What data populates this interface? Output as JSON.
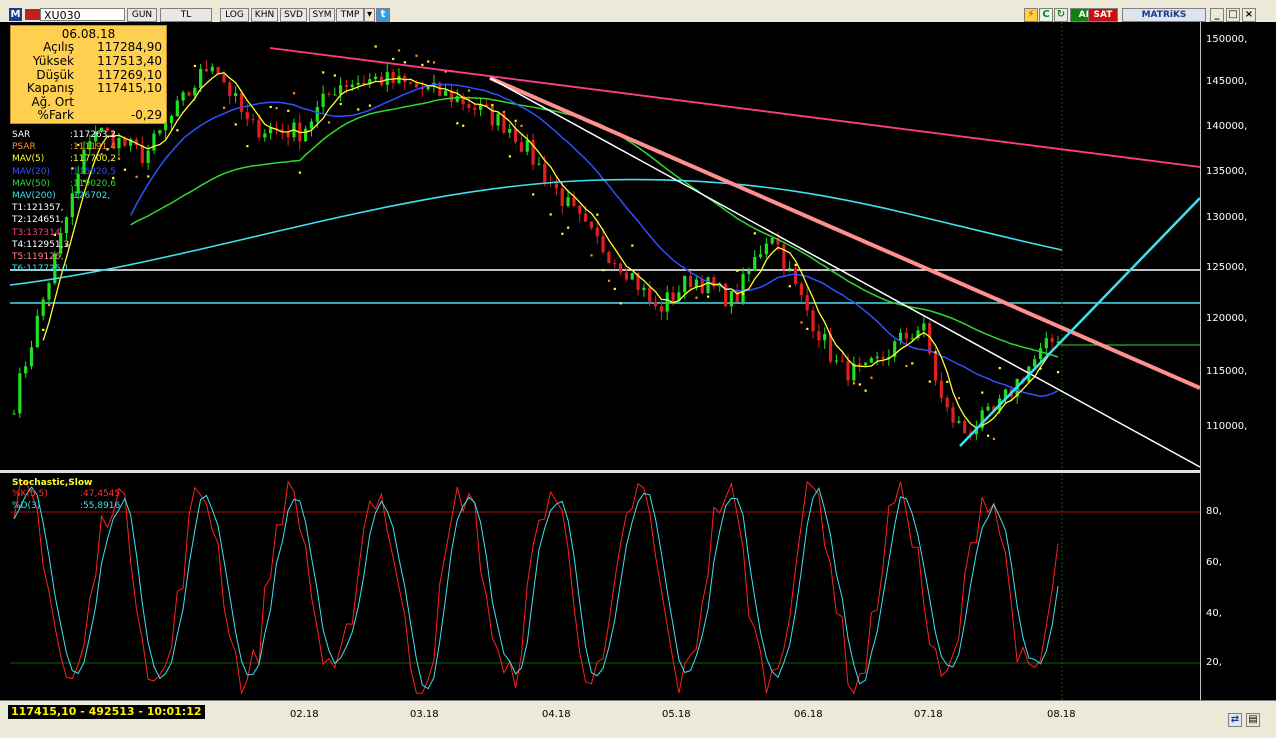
{
  "toolbar": {
    "logo": "M",
    "symbol": "XU030",
    "buttons": [
      "GUN",
      "TL",
      "LOG",
      "KHN",
      "SVD",
      "SYM",
      "TMP"
    ],
    "right": {
      "al": "AL",
      "sat": "SAT",
      "brand": "MATRiKS"
    }
  },
  "info": {
    "date": "06.08.18",
    "rows": [
      {
        "label": "Açılış",
        "value": "117284,90"
      },
      {
        "label": "Yüksek",
        "value": "117513,40"
      },
      {
        "label": "Düşük",
        "value": "117269,10"
      },
      {
        "label": "Kapanış",
        "value": "117415,10"
      },
      {
        "label": "Ağ. Ort",
        "value": ""
      },
      {
        "label": "%Fark",
        "value": "-0,29"
      }
    ]
  },
  "indicators": [
    {
      "label": "SAR",
      "value": ":117263,2",
      "color": "#ffffff"
    },
    {
      "label": "PSAR",
      "value": ":111191,4",
      "color": "#ff8c28"
    },
    {
      "label": "MAV(5)",
      "value": ":117700,2",
      "color": "#ffff30"
    },
    {
      "label": "MAV(20)",
      "value": ":116920,5",
      "color": "#3050ff"
    },
    {
      "label": "MAV(50)",
      "value": ":119020,6",
      "color": "#30d830"
    },
    {
      "label": "MAV(200)",
      "value": ":126702,",
      "color": "#40e0f0"
    },
    {
      "label": "T1:121357,",
      "value": "",
      "color": "#ffffff"
    },
    {
      "label": "T2:124651,",
      "value": "",
      "color": "#ffffff"
    },
    {
      "label": "T3:137314,",
      "value": "",
      "color": "#ff3c8c"
    },
    {
      "label": "T4:112951,3",
      "value": "",
      "color": "#ffffff"
    },
    {
      "label": "T5:119126,",
      "value": "",
      "color": "#ff8080"
    },
    {
      "label": "T6:117725,1",
      "value": "",
      "color": "#40e0f0"
    }
  ],
  "price_axis": [
    "150000,",
    "145000,",
    "140000,",
    "135000,",
    "130000,",
    "125000,",
    "120000,",
    "115000,",
    "110000,"
  ],
  "stoch": {
    "title": "Stochastic,Slow",
    "k_label": "%K(5,5)",
    "k_value": ":47,4545",
    "d_label": "%D(3)",
    "d_value": ":55,8916",
    "axis": [
      "80,",
      "60,",
      "40,",
      "20,"
    ]
  },
  "x_axis": [
    "02.18",
    "03.18",
    "04.18",
    "05.18",
    "06.18",
    "07.18",
    "08.18"
  ],
  "status": "117415,10 - 492513 - 10:01:12",
  "colors": {
    "up": "#20e020",
    "down": "#e02020",
    "mav5": "#ffff30",
    "mav20": "#3050ff",
    "mav50": "#30d830",
    "mav200": "#40e0f0"
  }
}
